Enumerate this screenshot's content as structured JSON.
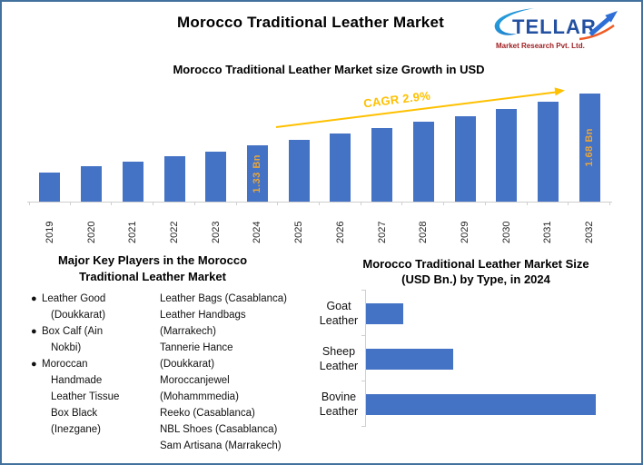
{
  "frame": {
    "border_color": "#41719C",
    "background": "#FFFFFF"
  },
  "header": {
    "title": "Morocco Traditional Leather Market"
  },
  "logo": {
    "brand": "STELLAR",
    "brand_rest": "TELLAR",
    "tagline": "Market Research Pvt. Ltd.",
    "colors": {
      "blue": "#2350A0",
      "cyan": "#29ABE2",
      "arrow_blue": "#2D6FD6",
      "orange": "#F15A24",
      "maroon": "#9E1B1E"
    }
  },
  "growth_chart": {
    "title": "Morocco Traditional Leather Market size Growth in USD",
    "cagr_label": "CAGR 2.9%"
  },
  "key_players": {
    "heading": [
      "Major Key Players in the Morocco",
      "Traditional Leather Market"
    ],
    "left": [
      {
        "name": "Leather Good (Doukkarat)",
        "lines": [
          "Leather Good",
          "(Doukkarat)"
        ]
      },
      {
        "name": "Box Calf (Ain Nokbi)",
        "lines": [
          "Box Calf (Ain",
          "Nokbi)"
        ]
      },
      {
        "name": "Moroccan Handmade Leather Tissue Box Black (Inezgane)",
        "lines": [
          "Moroccan",
          "Handmade",
          "Leather Tissue",
          "Box Black",
          "(Inezgane)"
        ]
      }
    ],
    "right": [
      {
        "name": "Leather Bags (Casablanca)",
        "lines": [
          "Leather Bags (Casablanca)"
        ]
      },
      {
        "name": "Leather Handbags (Marrakech)",
        "lines": [
          "Leather Handbags",
          "(Marrakech)"
        ]
      },
      {
        "name": "Tannerie Hance (Doukkarat)",
        "lines": [
          "Tannerie Hance",
          "(Doukkarat)"
        ]
      },
      {
        "name": "Moroccanjewel (Mohammmedia)",
        "lines": [
          "Moroccanjewel",
          "(Mohammmedia)"
        ]
      },
      {
        "name": "Reeko (Casablanca)",
        "lines": [
          "Reeko (Casablanca)"
        ]
      },
      {
        "name": "NBL Shoes (Casablanca)",
        "lines": [
          "NBL Shoes (Casablanca)"
        ]
      },
      {
        "name": "Sam Artisana (Marrakech)",
        "lines": [
          "Sam Artisana (Marrakech)"
        ]
      }
    ]
  },
  "type_chart": {
    "title_lines": [
      "Morocco Traditional Leather Market Size",
      "(USD Bn.) by Type, in 2024"
    ]
  },
  "chart_data": [
    {
      "id": "growth",
      "type": "bar",
      "title": "Morocco Traditional Leather Market size Growth in USD",
      "categories": [
        "2019",
        "2020",
        "2021",
        "2022",
        "2023",
        "2024",
        "2025",
        "2026",
        "2027",
        "2028",
        "2029",
        "2030",
        "2031",
        "2032"
      ],
      "values": [
        1.15,
        1.19,
        1.22,
        1.26,
        1.29,
        1.33,
        1.37,
        1.41,
        1.45,
        1.49,
        1.53,
        1.58,
        1.63,
        1.68
      ],
      "unit": "USD Bn",
      "bar_labels": {
        "2024": "1.33 Bn",
        "2032": "1.68 Bn"
      },
      "annotation": {
        "text": "CAGR 2.9%",
        "color": "#FFC000"
      },
      "bar_color": "#4472C4",
      "bar_label_color": "#E9A63B",
      "ylim": [
        0.95,
        1.75
      ],
      "grid": false,
      "legend": false,
      "x_tick_rotation": 90
    },
    {
      "id": "by_type",
      "type": "bar",
      "orientation": "horizontal",
      "title": "Morocco Traditional Leather Market Size (USD Bn.) by Type, in 2024",
      "categories": [
        "Goat Leather",
        "Sheep Leather",
        "Bovine Leather"
      ],
      "category_lines": [
        [
          "Goat",
          "Leather"
        ],
        [
          "Sheep",
          "Leather"
        ],
        [
          "Bovine",
          "Leather"
        ]
      ],
      "values": [
        0.14,
        0.33,
        0.87
      ],
      "unit": "USD Bn",
      "bar_color": "#4472C4",
      "xlim": [
        0,
        1.0
      ],
      "grid": false,
      "legend": false
    }
  ]
}
